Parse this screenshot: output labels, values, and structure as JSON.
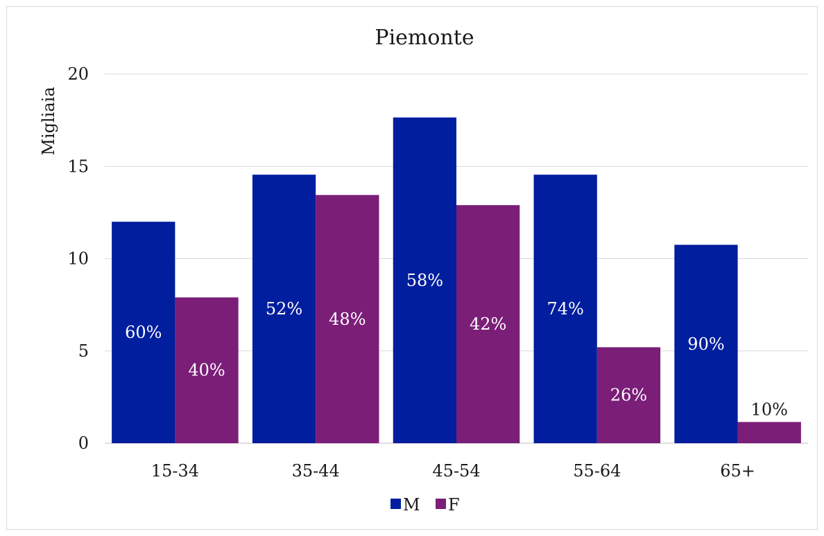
{
  "chart_data": {
    "type": "bar",
    "title": "Piemonte",
    "xlabel": "",
    "ylabel": "Migliaia",
    "ylim": [
      0,
      20
    ],
    "yticks": [
      0,
      5,
      10,
      15,
      20
    ],
    "grid": true,
    "legend_position": "bottom",
    "categories": [
      "15-34",
      "35-44",
      "45-54",
      "55-64",
      "65+"
    ],
    "series": [
      {
        "name": "M",
        "color": "#001e9e",
        "values": [
          12.0,
          14.55,
          17.65,
          14.55,
          10.75
        ],
        "labels": [
          "60%",
          "52%",
          "58%",
          "74%",
          "90%"
        ]
      },
      {
        "name": "F",
        "color": "#7a1e78",
        "values": [
          7.9,
          13.45,
          12.9,
          5.2,
          1.15
        ],
        "labels": [
          "40%",
          "48%",
          "42%",
          "26%",
          "10%"
        ]
      }
    ]
  }
}
